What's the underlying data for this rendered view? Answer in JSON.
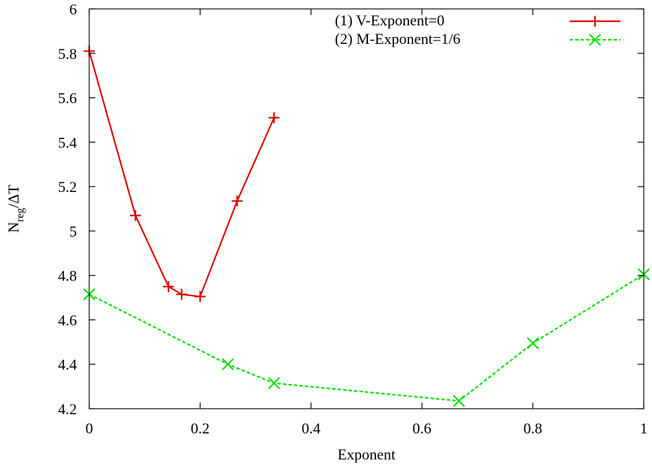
{
  "colors": {
    "series1": "#e00000",
    "series2": "#00e000",
    "axis": "#000000",
    "background": "#ffffff"
  },
  "chart_data": {
    "type": "line",
    "title": "",
    "xlabel": "Exponent",
    "ylabel": {
      "base": "N",
      "subscript": "reg",
      "suffix": "/ΔT"
    },
    "xlim": [
      0,
      1
    ],
    "ylim": [
      4.2,
      6
    ],
    "xticks": [
      0,
      0.2,
      0.4,
      0.6,
      0.8,
      1
    ],
    "xtick_labels": [
      "0",
      "0.2",
      "0.4",
      "0.6",
      "0.8",
      "1"
    ],
    "yticks": [
      4.2,
      4.4,
      4.6,
      4.8,
      5,
      5.2,
      5.4,
      5.6,
      5.8,
      6
    ],
    "ytick_labels": [
      "4.2",
      "4.4",
      "4.6",
      "4.8",
      "5",
      "5.2",
      "5.4",
      "5.6",
      "5.8",
      "6"
    ],
    "grid": false,
    "legend_position": "top-right",
    "series": [
      {
        "name": "(1) V-Exponent=0",
        "marker": "plus",
        "line_style": "solid",
        "color": "#e00000",
        "x": [
          0,
          0.0833,
          0.1429,
          0.1667,
          0.2,
          0.2667,
          0.3333
        ],
        "y": [
          5.81,
          5.07,
          4.75,
          4.715,
          4.705,
          5.135,
          5.51
        ]
      },
      {
        "name": "(2) M-Exponent=1/6",
        "marker": "cross",
        "line_style": "dashed",
        "color": "#00e000",
        "x": [
          0,
          0.25,
          0.3333,
          0.6667,
          0.8,
          1
        ],
        "y": [
          4.715,
          4.4,
          4.315,
          4.235,
          4.495,
          4.805
        ]
      }
    ]
  }
}
